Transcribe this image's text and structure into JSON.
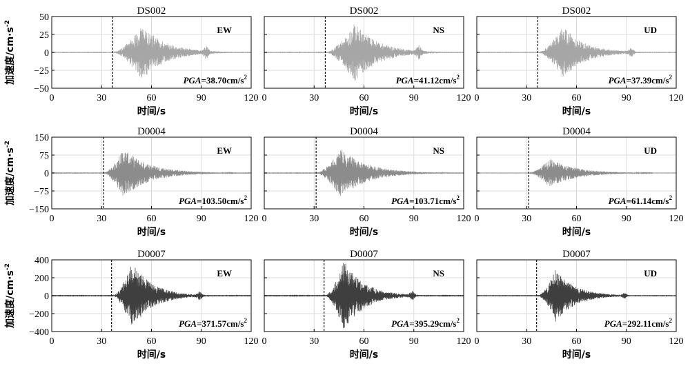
{
  "chart_data": {
    "type": "line",
    "x_label": "时间/s",
    "y_label": "加速度/cm·s",
    "y_label_exp": "-2",
    "x_ticks": [
      0,
      30,
      60,
      90,
      120
    ],
    "xlim": [
      0,
      120
    ],
    "grid": true,
    "rows": [
      {
        "station": "DS002",
        "ylim": [
          -50,
          50
        ],
        "y_ticks": [
          50,
          25,
          0,
          -25,
          -50
        ],
        "color": "#a6a6a6",
        "panels": [
          {
            "title": "DS002",
            "component": "EW",
            "pga_prefix": "PGA",
            "pga_text": "=38.70cm/s",
            "pga_exp": "2",
            "pga": 38.7,
            "p_arrival": 36.7,
            "onset": 36.5,
            "peak_time": 54.5,
            "extent": 70,
            "tail_time": 93,
            "tail_amp": 0.18
          },
          {
            "title": "DS002",
            "component": "NS",
            "pga_prefix": "PGA",
            "pga_text": "=41.12cm/s",
            "pga_exp": "2",
            "pga": 41.12,
            "p_arrival": 36.7,
            "onset": 36.5,
            "peak_time": 54.5,
            "extent": 70,
            "tail_time": 93,
            "tail_amp": 0.2
          },
          {
            "title": "DS002",
            "component": "UD",
            "pga_prefix": "PGA",
            "pga_text": "=37.39cm/s",
            "pga_exp": "2",
            "pga": 37.39,
            "p_arrival": 36.7,
            "onset": 36.5,
            "peak_time": 52.0,
            "extent": 65,
            "tail_time": 93,
            "tail_amp": 0.14
          }
        ]
      },
      {
        "station": "D0004",
        "ylim": [
          -150,
          150
        ],
        "y_ticks": [
          150,
          75,
          0,
          -75,
          -150
        ],
        "color": "#8c8c8c",
        "panels": [
          {
            "title": "D0004",
            "component": "EW",
            "pga_prefix": "PGA",
            "pga_text": "=103.50cm/s",
            "pga_exp": "2",
            "pga": 103.5,
            "p_arrival": 31.2,
            "onset": 31.0,
            "peak_time": 43.0,
            "extent": 78,
            "tail_time": 0,
            "tail_amp": 0
          },
          {
            "title": "D0004",
            "component": "NS",
            "pga_prefix": "PGA",
            "pga_text": "=103.71cm/s",
            "pga_exp": "2",
            "pga": 103.71,
            "p_arrival": 31.2,
            "onset": 31.0,
            "peak_time": 46.0,
            "extent": 78,
            "tail_time": 0,
            "tail_amp": 0
          },
          {
            "title": "D0004",
            "component": "UD",
            "pga_prefix": "PGA",
            "pga_text": "=61.14cm/s",
            "pga_exp": "2",
            "pga": 61.14,
            "p_arrival": 31.2,
            "onset": 31.0,
            "peak_time": 44.0,
            "extent": 75,
            "tail_time": 0,
            "tail_amp": 0
          }
        ]
      },
      {
        "station": "D0007",
        "ylim": [
          -400,
          400
        ],
        "y_ticks": [
          400,
          200,
          0,
          -200,
          -400
        ],
        "color": "#3f3f3f",
        "panels": [
          {
            "title": "D0007",
            "component": "EW",
            "pga_prefix": "PGA",
            "pga_text": "=371.57cm/s",
            "pga_exp": "2",
            "pga": 371.57,
            "p_arrival": 36.0,
            "onset": 36.5,
            "peak_time": 48.5,
            "extent": 60,
            "tail_time": 89,
            "tail_amp": 0.1
          },
          {
            "title": "D0007",
            "component": "NS",
            "pga_prefix": "PGA",
            "pga_text": "=395.29cm/s",
            "pga_exp": "2",
            "pga": 395.29,
            "p_arrival": 36.0,
            "onset": 36.5,
            "peak_time": 48.0,
            "extent": 60,
            "tail_time": 89,
            "tail_amp": 0.1
          },
          {
            "title": "D0007",
            "component": "UD",
            "pga_prefix": "PGA",
            "pga_text": "=292.11cm/s",
            "pga_exp": "2",
            "pga": 292.11,
            "p_arrival": 36.0,
            "onset": 36.5,
            "peak_time": 47.5,
            "extent": 58,
            "tail_time": 89,
            "tail_amp": 0.08
          }
        ]
      }
    ]
  }
}
